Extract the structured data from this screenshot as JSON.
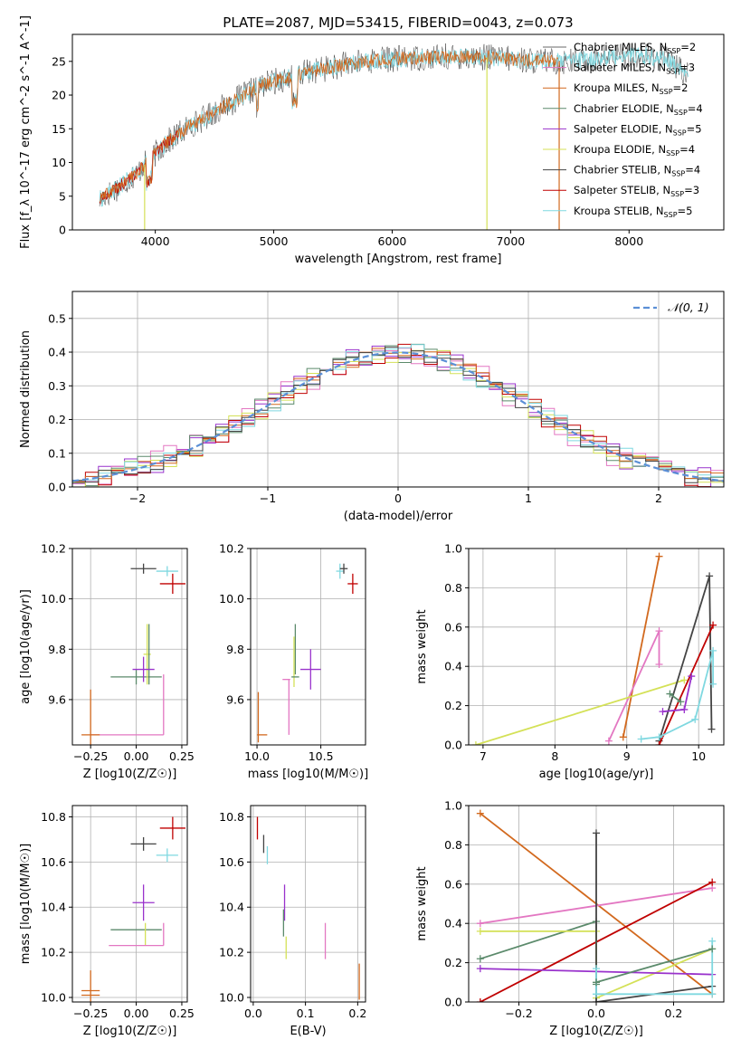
{
  "figure": {
    "title": "PLATE=2087, MJD=53415, FIBERID=0043, z=0.073"
  },
  "colors": {
    "Chabrier MILES": "#6a6a6a",
    "Salpeter MILES": "#e377c2",
    "Kroupa MILES": "#d2691e",
    "Chabrier ELODIE": "#5b8a6b",
    "Salpeter ELODIE": "#9932cc",
    "Kroupa ELODIE": "#d4e157",
    "Chabrier STELIB": "#444444",
    "Salpeter STELIB": "#c00000",
    "Kroupa STELIB": "#7fd8e0",
    "normal_curve": "#5b8fd6"
  },
  "chart_data": [
    {
      "id": "spectrum",
      "type": "line",
      "title": "PLATE=2087, MJD=53415, FIBERID=0043, z=0.073",
      "xlabel": "wavelength [Angstrom, rest frame]",
      "ylabel": "Flux [f_λ 10^-17 erg cm^-2 s^-1 A^-1]",
      "xlim": [
        3300,
        8800
      ],
      "ylim": [
        0,
        29
      ],
      "xticks": [
        4000,
        5000,
        6000,
        7000,
        8000
      ],
      "yticks": [
        0,
        5,
        10,
        15,
        20,
        25
      ],
      "legend_position": "right",
      "legend": [
        {
          "name": "Chabrier MILES",
          "sub": "2",
          "marker": "+"
        },
        {
          "name": "Salpeter MILES",
          "sub": "3",
          "marker": "+"
        },
        {
          "name": "Kroupa MILES",
          "sub": "2",
          "marker": ""
        },
        {
          "name": "Chabrier ELODIE",
          "sub": "4",
          "marker": ""
        },
        {
          "name": "Salpeter ELODIE",
          "sub": "5",
          "marker": ""
        },
        {
          "name": "Kroupa ELODIE",
          "sub": "4",
          "marker": ""
        },
        {
          "name": "Chabrier STELIB",
          "sub": "4",
          "marker": ""
        },
        {
          "name": "Salpeter STELIB",
          "sub": "3",
          "marker": ""
        },
        {
          "name": "Kroupa STELIB",
          "sub": "5",
          "marker": ""
        }
      ],
      "continuum": {
        "x": [
          3530,
          3700,
          3850,
          3950,
          4100,
          4300,
          4500,
          4700,
          4900,
          5100,
          5300,
          5600,
          5900,
          6200,
          6500,
          6800,
          7100,
          7400,
          7700,
          8000,
          8300,
          8500
        ],
        "y": [
          4.5,
          6.5,
          8.5,
          10.5,
          13,
          15.5,
          17.5,
          19.5,
          21.5,
          22.5,
          23.5,
          24.5,
          25.3,
          25.5,
          25.7,
          25.6,
          25.2,
          25,
          25.3,
          26,
          25.5,
          23
        ]
      },
      "noise_series": [
        {
          "series": "Chabrier STELIB",
          "xmin": 3530,
          "xmax": 8500,
          "amplitude": 2.0
        },
        {
          "series": "Kroupa STELIB",
          "xmin": 3530,
          "xmax": 8500,
          "amplitude": 1.3
        },
        {
          "series": "Salpeter STELIB",
          "xmin": 3530,
          "xmax": 4200,
          "amplitude": 0.9
        },
        {
          "series": "Kroupa MILES",
          "xmin": 3530,
          "xmax": 7400,
          "amplitude": 1.0
        }
      ],
      "dips": [
        {
          "series": "Kroupa ELODIE",
          "x": 3910,
          "y": 0
        },
        {
          "series": "Kroupa ELODIE",
          "x": 6800,
          "y": 0
        },
        {
          "series": "Kroupa MILES",
          "x": 7410,
          "y": 0
        }
      ]
    },
    {
      "id": "residuals",
      "type": "line",
      "xlabel": "(data-model)/error",
      "ylabel": "Normed distribution",
      "xlim": [
        -2.5,
        2.5
      ],
      "ylim": [
        0,
        0.58
      ],
      "xticks": [
        -2,
        -1,
        0,
        1,
        2
      ],
      "yticks": [
        0,
        0.1,
        0.2,
        0.3,
        0.4,
        0.5
      ],
      "grid": true,
      "legend_position": "top-right",
      "legend": [
        {
          "name": "𝒩(0, 1)"
        }
      ],
      "bin_width": 0.1,
      "curve": {
        "type": "gaussian",
        "mu": 0,
        "sigma": 1
      },
      "histograms": [
        {
          "series": "Salpeter ELODIE",
          "deviation": 0.035
        },
        {
          "series": "Salpeter MILES",
          "deviation": 0.04
        },
        {
          "series": "Chabrier ELODIE",
          "deviation": 0.035
        },
        {
          "series": "Kroupa ELODIE",
          "deviation": 0.03
        },
        {
          "series": "Salpeter STELIB",
          "deviation": 0.03
        },
        {
          "series": "Kroupa MILES",
          "deviation": 0.025
        },
        {
          "series": "Kroupa STELIB",
          "deviation": 0.03
        },
        {
          "series": "Chabrier STELIB",
          "deviation": 0.02
        }
      ]
    },
    {
      "id": "age-vs-Z",
      "type": "scatter",
      "xlabel": "Z [log10(Z/Z☉)]",
      "ylabel": "age [log10(age/yr)]",
      "xlim": [
        -0.35,
        0.28
      ],
      "ylim": [
        9.42,
        10.2
      ],
      "xticks": [
        -0.25,
        0,
        0.25
      ],
      "yticks": [
        9.6,
        9.8,
        10.0,
        10.2
      ],
      "grid": true,
      "points": [
        {
          "series": "Chabrier STELIB",
          "x": 0.04,
          "y": 10.12,
          "xerr": 0.07,
          "yerr": 0.02
        },
        {
          "series": "Kroupa STELIB",
          "x": 0.17,
          "y": 10.11,
          "xerr": 0.06,
          "yerr": 0.02
        },
        {
          "series": "Salpeter STELIB",
          "x": 0.2,
          "y": 10.06,
          "xerr": 0.07,
          "yerr": 0.04
        },
        {
          "series": "Chabrier ELODIE",
          "x": 0.0,
          "y": 9.69,
          "xerr": 0.14,
          "yerr": 0.03
        },
        {
          "series": "Kroupa ELODIE",
          "x": 0.06,
          "y": 9.78,
          "xerr": 0.02,
          "yerr": 0.12
        },
        {
          "series": "Chabrier ELODIE",
          "x": 0.07,
          "y": 9.78,
          "xerr": 0.0,
          "yerr": 0.12
        },
        {
          "series": "Salpeter ELODIE",
          "x": 0.04,
          "y": 9.72,
          "xerr": 0.06,
          "yerr": 0.05
        },
        {
          "series": "Salpeter MILES",
          "x": -0.05,
          "y": 9.46,
          "xerr": 0.2,
          "yerr": 0.0
        },
        {
          "series": "Salpeter MILES",
          "x": 0.15,
          "y": 9.58,
          "xerr": 0.0,
          "yerr": 0.12
        },
        {
          "series": "Kroupa MILES",
          "x": -0.25,
          "y": 9.53,
          "xerr": 0.0,
          "yerr": 0.11
        },
        {
          "series": "Kroupa MILES",
          "x": -0.25,
          "y": 9.46,
          "xerr": 0.05,
          "yerr": 0.0
        }
      ]
    },
    {
      "id": "age-vs-mass",
      "type": "scatter",
      "xlabel": "mass [log10(M/M☉)]",
      "ylabel": "",
      "xlim": [
        9.95,
        10.85
      ],
      "ylim": [
        9.42,
        10.2
      ],
      "xticks": [
        10.0,
        10.5
      ],
      "yticks": [
        9.6,
        9.8,
        10.0,
        10.2
      ],
      "grid": true,
      "points": [
        {
          "series": "Kroupa STELIB",
          "x": 10.65,
          "y": 10.11,
          "xerr": 0.03,
          "yerr": 0.03
        },
        {
          "series": "Chabrier STELIB",
          "x": 10.68,
          "y": 10.12,
          "xerr": 0.03,
          "yerr": 0.02
        },
        {
          "series": "Salpeter STELIB",
          "x": 10.75,
          "y": 10.06,
          "xerr": 0.04,
          "yerr": 0.04
        },
        {
          "series": "Salpeter ELODIE",
          "x": 10.42,
          "y": 9.72,
          "xerr": 0.08,
          "yerr": 0.08
        },
        {
          "series": "Chabrier ELODIE",
          "x": 10.3,
          "y": 9.8,
          "xerr": 0.0,
          "yerr": 0.1
        },
        {
          "series": "Kroupa ELODIE",
          "x": 10.29,
          "y": 9.75,
          "xerr": 0.0,
          "yerr": 0.1
        },
        {
          "series": "Chabrier ELODIE",
          "x": 10.3,
          "y": 9.69,
          "xerr": 0.03,
          "yerr": 0.0
        },
        {
          "series": "Salpeter MILES",
          "x": 10.23,
          "y": 9.68,
          "xerr": 0.03,
          "yerr": 0.0
        },
        {
          "series": "Salpeter MILES",
          "x": 10.25,
          "y": 9.57,
          "xerr": 0.0,
          "yerr": 0.11
        },
        {
          "series": "Kroupa MILES",
          "x": 10.01,
          "y": 9.53,
          "xerr": 0.0,
          "yerr": 0.1
        },
        {
          "series": "Kroupa MILES",
          "x": 10.04,
          "y": 9.46,
          "xerr": 0.04,
          "yerr": 0.0
        }
      ]
    },
    {
      "id": "mass-weight-vs-age",
      "type": "line",
      "xlabel": "age [log10(age/yr)]",
      "ylabel": "mass weight",
      "xlim": [
        6.8,
        10.35
      ],
      "ylim": [
        0,
        1.0
      ],
      "xticks": [
        7,
        8,
        9,
        10
      ],
      "yticks": [
        0,
        0.2,
        0.4,
        0.6,
        0.8,
        1.0
      ],
      "grid": true,
      "series": [
        {
          "series": "Kroupa MILES",
          "x": [
            8.95,
            9.45
          ],
          "y": [
            0.04,
            0.96
          ]
        },
        {
          "series": "Salpeter MILES",
          "x": [
            8.75,
            9.45,
            9.45
          ],
          "y": [
            0.02,
            0.58,
            0.41
          ]
        },
        {
          "series": "Kroupa ELODIE",
          "x": [
            6.9,
            9.8
          ],
          "y": [
            0.0,
            0.33
          ]
        },
        {
          "series": "Chabrier STELIB",
          "x": [
            9.45,
            10.15,
            10.18
          ],
          "y": [
            0.02,
            0.86,
            0.08
          ]
        },
        {
          "series": "Salpeter STELIB",
          "x": [
            9.45,
            10.2
          ],
          "y": [
            0.0,
            0.61
          ]
        },
        {
          "series": "Kroupa STELIB",
          "x": [
            9.2,
            9.45,
            9.95,
            10.2,
            10.2
          ],
          "y": [
            0.03,
            0.04,
            0.13,
            0.48,
            0.31
          ]
        },
        {
          "series": "Salpeter ELODIE",
          "x": [
            9.5,
            9.8,
            9.9
          ],
          "y": [
            0.17,
            0.18,
            0.35
          ]
        },
        {
          "series": "Chabrier ELODIE",
          "x": [
            9.6,
            9.75
          ],
          "y": [
            0.26,
            0.22
          ]
        }
      ]
    },
    {
      "id": "mass-vs-Z",
      "type": "scatter",
      "xlabel": "Z [log10(Z/Z☉)]",
      "ylabel": "mass [log10(M/M☉)]",
      "xlim": [
        -0.35,
        0.28
      ],
      "ylim": [
        9.98,
        10.85
      ],
      "xticks": [
        -0.25,
        0,
        0.25
      ],
      "yticks": [
        10.0,
        10.2,
        10.4,
        10.6,
        10.8
      ],
      "grid": true,
      "points": [
        {
          "series": "Salpeter STELIB",
          "x": 0.2,
          "y": 10.75,
          "xerr": 0.07,
          "yerr": 0.05
        },
        {
          "series": "Chabrier STELIB",
          "x": 0.04,
          "y": 10.68,
          "xerr": 0.07,
          "yerr": 0.03
        },
        {
          "series": "Kroupa STELIB",
          "x": 0.17,
          "y": 10.63,
          "xerr": 0.06,
          "yerr": 0.03
        },
        {
          "series": "Salpeter ELODIE",
          "x": 0.04,
          "y": 10.42,
          "xerr": 0.06,
          "yerr": 0.08
        },
        {
          "series": "Chabrier ELODIE",
          "x": 0.0,
          "y": 10.3,
          "xerr": 0.14,
          "yerr": 0.0
        },
        {
          "series": "Kroupa ELODIE",
          "x": 0.05,
          "y": 10.28,
          "xerr": 0.0,
          "yerr": 0.05
        },
        {
          "series": "Salpeter MILES",
          "x": 0.0,
          "y": 10.23,
          "xerr": 0.15,
          "yerr": 0.0
        },
        {
          "series": "Salpeter MILES",
          "x": 0.15,
          "y": 10.28,
          "xerr": 0.0,
          "yerr": 0.05
        },
        {
          "series": "Kroupa MILES",
          "x": -0.25,
          "y": 10.03,
          "xerr": 0.05,
          "yerr": 0.09
        },
        {
          "series": "Kroupa MILES",
          "x": -0.25,
          "y": 10.01,
          "xerr": 0.05,
          "yerr": 0.0
        }
      ]
    },
    {
      "id": "mass-vs-EBV",
      "type": "scatter",
      "xlabel": "E(B-V)",
      "ylabel": "",
      "xlim": [
        -0.005,
        0.215
      ],
      "ylim": [
        9.98,
        10.85
      ],
      "xticks": [
        0.0,
        0.1,
        0.2
      ],
      "yticks": [
        10.0,
        10.2,
        10.4,
        10.6,
        10.8
      ],
      "grid": true,
      "points": [
        {
          "series": "Salpeter STELIB",
          "x": 0.008,
          "y": 10.75,
          "xerr": 0.0,
          "yerr": 0.05
        },
        {
          "series": "Chabrier STELIB",
          "x": 0.02,
          "y": 10.68,
          "xerr": 0.0,
          "yerr": 0.04
        },
        {
          "series": "Kroupa STELIB",
          "x": 0.027,
          "y": 10.63,
          "xerr": 0.0,
          "yerr": 0.04
        },
        {
          "series": "Salpeter ELODIE",
          "x": 0.06,
          "y": 10.42,
          "xerr": 0.0,
          "yerr": 0.08
        },
        {
          "series": "Chabrier ELODIE",
          "x": 0.058,
          "y": 10.33,
          "xerr": 0.0,
          "yerr": 0.06
        },
        {
          "series": "Kroupa ELODIE",
          "x": 0.063,
          "y": 10.22,
          "xerr": 0.0,
          "yerr": 0.05
        },
        {
          "series": "Salpeter MILES",
          "x": 0.138,
          "y": 10.25,
          "xerr": 0.0,
          "yerr": 0.08
        },
        {
          "series": "Kroupa MILES",
          "x": 0.203,
          "y": 10.07,
          "xerr": 0.0,
          "yerr": 0.08
        }
      ]
    },
    {
      "id": "mass-weight-vs-Z",
      "type": "line",
      "xlabel": "Z [log10(Z/Z☉)]",
      "ylabel": "mass weight",
      "xlim": [
        -0.33,
        0.33
      ],
      "ylim": [
        0,
        1.0
      ],
      "xticks": [
        -0.2,
        0.0,
        0.2
      ],
      "yticks": [
        0,
        0.2,
        0.4,
        0.6,
        0.8,
        1.0
      ],
      "grid": true,
      "series": [
        {
          "series": "Kroupa MILES",
          "x": [
            -0.3,
            0.3
          ],
          "y": [
            0.96,
            0.04
          ]
        },
        {
          "series": "Salpeter MILES",
          "x": [
            -0.3,
            0.3
          ],
          "y": [
            0.4,
            0.58
          ]
        },
        {
          "series": "Salpeter STELIB",
          "x": [
            -0.3,
            0.3
          ],
          "y": [
            0.0,
            0.61
          ]
        },
        {
          "series": "Chabrier ELODIE",
          "x": [
            -0.3,
            0.0,
            0.0
          ],
          "y": [
            0.22,
            0.41,
            0.09
          ]
        },
        {
          "series": "Kroupa ELODIE",
          "x": [
            -0.3,
            0.0,
            0.0,
            0.3
          ],
          "y": [
            0.36,
            0.36,
            0.02,
            0.27
          ]
        },
        {
          "series": "Salpeter ELODIE",
          "x": [
            -0.3,
            0.3
          ],
          "y": [
            0.17,
            0.14
          ]
        },
        {
          "series": "Chabrier STELIB",
          "x": [
            0.0,
            0.0,
            0.3
          ],
          "y": [
            0.86,
            0.0,
            0.08
          ]
        },
        {
          "series": "Kroupa STELIB",
          "x": [
            0.0,
            0.0,
            0.3,
            0.3
          ],
          "y": [
            0.17,
            0.04,
            0.04,
            0.31
          ]
        },
        {
          "series": "Chabrier ELODIE",
          "x": [
            0.0,
            0.3
          ],
          "y": [
            0.1,
            0.27
          ]
        }
      ]
    }
  ]
}
